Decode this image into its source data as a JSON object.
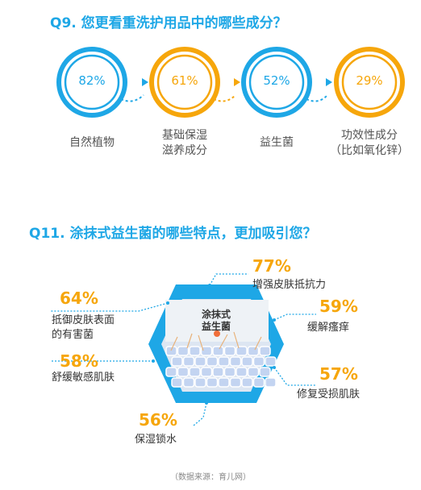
{
  "q9": {
    "title": "Q9. 您更看重洗护用品中的哪些成分？",
    "items": [
      {
        "value": "82%",
        "label_line1": "自然植物",
        "label_line2": "",
        "color": "#1ea7e6"
      },
      {
        "value": "61%",
        "label_line1": "基础保湿",
        "label_line2": "滋养成分",
        "color": "#f6a60b"
      },
      {
        "value": "52%",
        "label_line1": "益生菌",
        "label_line2": "",
        "color": "#1ea7e6"
      },
      {
        "value": "29%",
        "label_line1": "功效性成分",
        "label_line2": "（比如氧化锌）",
        "color": "#f6a60b"
      }
    ]
  },
  "q11": {
    "title": "Q11. 涂抹式益生菌的哪些特点，更加吸引您？",
    "center_label_line1": "涂抹式",
    "center_label_line2": "益生菌",
    "items": [
      {
        "value": "77%",
        "label_line1": "增强皮肤抵抗力",
        "label_line2": ""
      },
      {
        "value": "59%",
        "label_line1": "缓解瘙痒",
        "label_line2": ""
      },
      {
        "value": "57%",
        "label_line1": "修复受损肌肤",
        "label_line2": ""
      },
      {
        "value": "56%",
        "label_line1": "保湿锁水",
        "label_line2": ""
      },
      {
        "value": "58%",
        "label_line1": "舒缓敏感肌肤",
        "label_line2": ""
      },
      {
        "value": "64%",
        "label_line1": "抵御皮肤表面",
        "label_line2": "的有害菌"
      }
    ]
  },
  "footer": "（数据来源：育儿网）",
  "colors": {
    "blue": "#1ea7e6",
    "orange": "#f6a60b"
  },
  "chart_data": [
    {
      "type": "bar",
      "title": "Q9. 您更看重洗护用品中的哪些成分？",
      "categories": [
        "自然植物",
        "基础保湿滋养成分",
        "益生菌",
        "功效性成分（比如氧化锌）"
      ],
      "values": [
        82,
        61,
        52,
        29
      ]
    },
    {
      "type": "bar",
      "title": "Q11. 涂抹式益生菌的哪些特点，更加吸引您？",
      "categories": [
        "增强皮肤抵抗力",
        "缓解瘙痒",
        "修复受损肌肤",
        "保湿锁水",
        "舒缓敏感肌肤",
        "抵御皮肤表面的有害菌"
      ],
      "values": [
        77,
        59,
        57,
        56,
        58,
        64
      ]
    }
  ]
}
